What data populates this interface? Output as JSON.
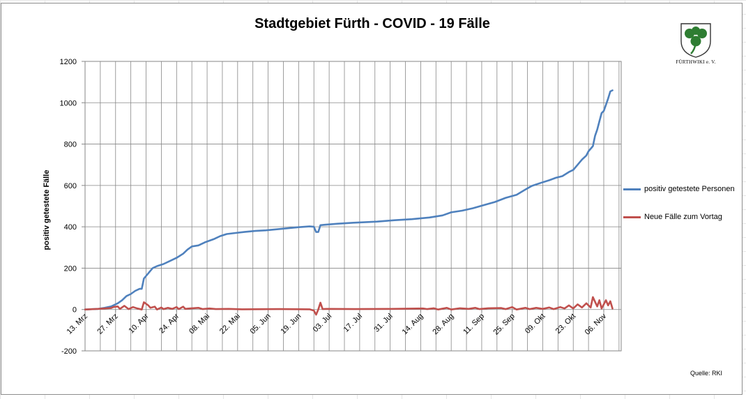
{
  "chart_data": {
    "type": "line",
    "title": "Stadtgebiet Fürth - COVID - 19 Fälle",
    "xlabel": "",
    "ylabel": "positiv getestete Fälle",
    "ylim": [
      -200,
      1200
    ],
    "yticks": [
      -200,
      0,
      200,
      400,
      600,
      800,
      1000,
      1200
    ],
    "xlim": [
      "2020-03-13",
      "2020-11-14"
    ],
    "x_tick_labels": [
      "13. Mrz",
      "27. Mrz",
      "10. Apr",
      "24. Apr",
      "08. Mai",
      "22. Mai",
      "05. Jun",
      "19. Jun",
      "03. Jul",
      "17. Jul",
      "31. Jul",
      "14. Aug",
      "28. Aug",
      "11. Sep",
      "25. Sep",
      "09. Okt",
      "23. Okt",
      "06. Nov"
    ],
    "x_tick_dates": [
      "2020-03-13",
      "2020-03-27",
      "2020-04-10",
      "2020-04-24",
      "2020-05-08",
      "2020-05-22",
      "2020-06-05",
      "2020-06-19",
      "2020-07-03",
      "2020-07-17",
      "2020-07-31",
      "2020-08-14",
      "2020-08-28",
      "2020-09-11",
      "2020-09-25",
      "2020-10-09",
      "2020-10-23",
      "2020-11-06"
    ],
    "grid": true,
    "legend_position": "right",
    "source": "Quelle: RKI",
    "series": [
      {
        "name": "positiv getestete Personen",
        "color": "#4f81bd",
        "points": [
          [
            "2020-03-13",
            0
          ],
          [
            "2020-03-19",
            3
          ],
          [
            "2020-03-22",
            8
          ],
          [
            "2020-03-25",
            15
          ],
          [
            "2020-03-28",
            30
          ],
          [
            "2020-03-30",
            45
          ],
          [
            "2020-04-01",
            65
          ],
          [
            "2020-04-03",
            75
          ],
          [
            "2020-04-05",
            90
          ],
          [
            "2020-04-07",
            100
          ],
          [
            "2020-04-08",
            100
          ],
          [
            "2020-04-09",
            150
          ],
          [
            "2020-04-11",
            175
          ],
          [
            "2020-04-13",
            200
          ],
          [
            "2020-04-15",
            210
          ],
          [
            "2020-04-18",
            220
          ],
          [
            "2020-04-21",
            235
          ],
          [
            "2020-04-24",
            250
          ],
          [
            "2020-04-27",
            270
          ],
          [
            "2020-04-29",
            290
          ],
          [
            "2020-05-01",
            305
          ],
          [
            "2020-05-04",
            310
          ],
          [
            "2020-05-07",
            325
          ],
          [
            "2020-05-11",
            340
          ],
          [
            "2020-05-14",
            355
          ],
          [
            "2020-05-17",
            365
          ],
          [
            "2020-05-21",
            370
          ],
          [
            "2020-05-25",
            375
          ],
          [
            "2020-05-30",
            380
          ],
          [
            "2020-06-04",
            383
          ],
          [
            "2020-06-09",
            388
          ],
          [
            "2020-06-14",
            393
          ],
          [
            "2020-06-19",
            398
          ],
          [
            "2020-06-24",
            402
          ],
          [
            "2020-06-26",
            400
          ],
          [
            "2020-06-27",
            375
          ],
          [
            "2020-06-28",
            375
          ],
          [
            "2020-06-29",
            408
          ],
          [
            "2020-07-01",
            410
          ],
          [
            "2020-07-07",
            415
          ],
          [
            "2020-07-15",
            420
          ],
          [
            "2020-07-25",
            425
          ],
          [
            "2020-08-02",
            432
          ],
          [
            "2020-08-10",
            437
          ],
          [
            "2020-08-18",
            445
          ],
          [
            "2020-08-24",
            455
          ],
          [
            "2020-08-28",
            470
          ],
          [
            "2020-09-02",
            478
          ],
          [
            "2020-09-07",
            490
          ],
          [
            "2020-09-12",
            505
          ],
          [
            "2020-09-17",
            520
          ],
          [
            "2020-09-22",
            540
          ],
          [
            "2020-09-27",
            555
          ],
          [
            "2020-10-01",
            580
          ],
          [
            "2020-10-04",
            598
          ],
          [
            "2020-10-08",
            612
          ],
          [
            "2020-10-12",
            625
          ],
          [
            "2020-10-15",
            637
          ],
          [
            "2020-10-18",
            645
          ],
          [
            "2020-10-21",
            665
          ],
          [
            "2020-10-23",
            675
          ],
          [
            "2020-10-25",
            700
          ],
          [
            "2020-10-27",
            725
          ],
          [
            "2020-10-29",
            745
          ],
          [
            "2020-10-30",
            765
          ],
          [
            "2020-11-01",
            790
          ],
          [
            "2020-11-02",
            840
          ],
          [
            "2020-11-03",
            870
          ],
          [
            "2020-11-04",
            910
          ],
          [
            "2020-11-05",
            950
          ],
          [
            "2020-11-06",
            960
          ],
          [
            "2020-11-07",
            990
          ],
          [
            "2020-11-08",
            1020
          ],
          [
            "2020-11-09",
            1055
          ],
          [
            "2020-11-10",
            1060
          ]
        ]
      },
      {
        "name": "Neue Fälle zum Vortag",
        "color": "#c0504d",
        "points": [
          [
            "2020-03-13",
            0
          ],
          [
            "2020-03-19",
            3
          ],
          [
            "2020-03-22",
            5
          ],
          [
            "2020-03-25",
            7
          ],
          [
            "2020-03-26",
            12
          ],
          [
            "2020-03-28",
            15
          ],
          [
            "2020-03-29",
            3
          ],
          [
            "2020-03-31",
            18
          ],
          [
            "2020-04-02",
            2
          ],
          [
            "2020-04-04",
            12
          ],
          [
            "2020-04-06",
            5
          ],
          [
            "2020-04-08",
            0
          ],
          [
            "2020-04-09",
            35
          ],
          [
            "2020-04-11",
            20
          ],
          [
            "2020-04-12",
            8
          ],
          [
            "2020-04-14",
            14
          ],
          [
            "2020-04-15",
            0
          ],
          [
            "2020-04-17",
            10
          ],
          [
            "2020-04-18",
            2
          ],
          [
            "2020-04-20",
            8
          ],
          [
            "2020-04-22",
            3
          ],
          [
            "2020-04-24",
            12
          ],
          [
            "2020-04-25",
            2
          ],
          [
            "2020-04-27",
            14
          ],
          [
            "2020-04-28",
            3
          ],
          [
            "2020-04-30",
            5
          ],
          [
            "2020-05-04",
            8
          ],
          [
            "2020-05-06",
            2
          ],
          [
            "2020-05-09",
            5
          ],
          [
            "2020-05-12",
            2
          ],
          [
            "2020-05-18",
            3
          ],
          [
            "2020-05-24",
            1
          ],
          [
            "2020-06-10",
            2
          ],
          [
            "2020-06-24",
            1
          ],
          [
            "2020-06-26",
            -5
          ],
          [
            "2020-06-27",
            -25
          ],
          [
            "2020-06-28",
            0
          ],
          [
            "2020-06-29",
            33
          ],
          [
            "2020-06-30",
            2
          ],
          [
            "2020-07-02",
            3
          ],
          [
            "2020-07-15",
            2
          ],
          [
            "2020-08-01",
            3
          ],
          [
            "2020-08-15",
            5
          ],
          [
            "2020-08-17",
            2
          ],
          [
            "2020-08-20",
            6
          ],
          [
            "2020-08-22",
            0
          ],
          [
            "2020-08-26",
            8
          ],
          [
            "2020-08-28",
            0
          ],
          [
            "2020-09-01",
            6
          ],
          [
            "2020-09-05",
            3
          ],
          [
            "2020-09-08",
            8
          ],
          [
            "2020-09-10",
            2
          ],
          [
            "2020-09-14",
            6
          ],
          [
            "2020-09-20",
            7
          ],
          [
            "2020-09-22",
            2
          ],
          [
            "2020-09-25",
            12
          ],
          [
            "2020-09-27",
            0
          ],
          [
            "2020-10-01",
            8
          ],
          [
            "2020-10-03",
            2
          ],
          [
            "2020-10-06",
            8
          ],
          [
            "2020-10-09",
            3
          ],
          [
            "2020-10-12",
            10
          ],
          [
            "2020-10-14",
            2
          ],
          [
            "2020-10-17",
            12
          ],
          [
            "2020-10-19",
            5
          ],
          [
            "2020-10-21",
            20
          ],
          [
            "2020-10-23",
            5
          ],
          [
            "2020-10-25",
            25
          ],
          [
            "2020-10-27",
            10
          ],
          [
            "2020-10-29",
            30
          ],
          [
            "2020-10-31",
            10
          ],
          [
            "2020-11-01",
            60
          ],
          [
            "2020-11-03",
            15
          ],
          [
            "2020-11-04",
            45
          ],
          [
            "2020-11-05",
            5
          ],
          [
            "2020-11-07",
            45
          ],
          [
            "2020-11-08",
            20
          ],
          [
            "2020-11-09",
            40
          ],
          [
            "2020-11-10",
            5
          ]
        ]
      }
    ]
  },
  "logo": {
    "caption": "FÜRTHWIKI e. V."
  }
}
